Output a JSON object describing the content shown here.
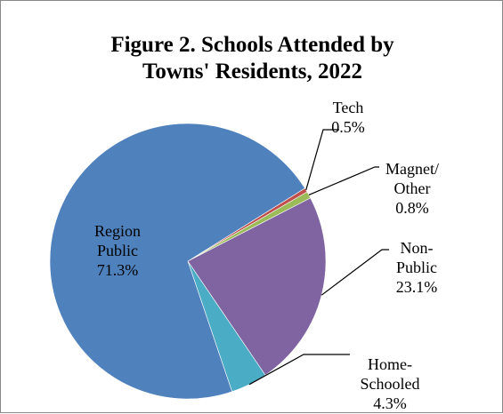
{
  "chart_data": {
    "type": "pie",
    "title_lines": [
      "Figure 2. Schools Attended by",
      "Towns' Residents, 2022"
    ],
    "slices": [
      {
        "label_lines": [
          "Tech"
        ],
        "value": 0.5,
        "pct_text": "0.5%",
        "color": "#C0504D"
      },
      {
        "label_lines": [
          "Magnet/",
          "Other"
        ],
        "value": 0.8,
        "pct_text": "0.8%",
        "color": "#9BBB59"
      },
      {
        "label_lines": [
          "Non-",
          "Public"
        ],
        "value": 23.1,
        "pct_text": "23.1%",
        "color": "#8064A2"
      },
      {
        "label_lines": [
          "Home-",
          "Schooled"
        ],
        "value": 4.3,
        "pct_text": "4.3%",
        "color": "#4BACC6"
      },
      {
        "label_lines": [
          "Region",
          "Public"
        ],
        "value": 71.3,
        "pct_text": "71.3%",
        "color": "#4F81BD"
      }
    ]
  }
}
